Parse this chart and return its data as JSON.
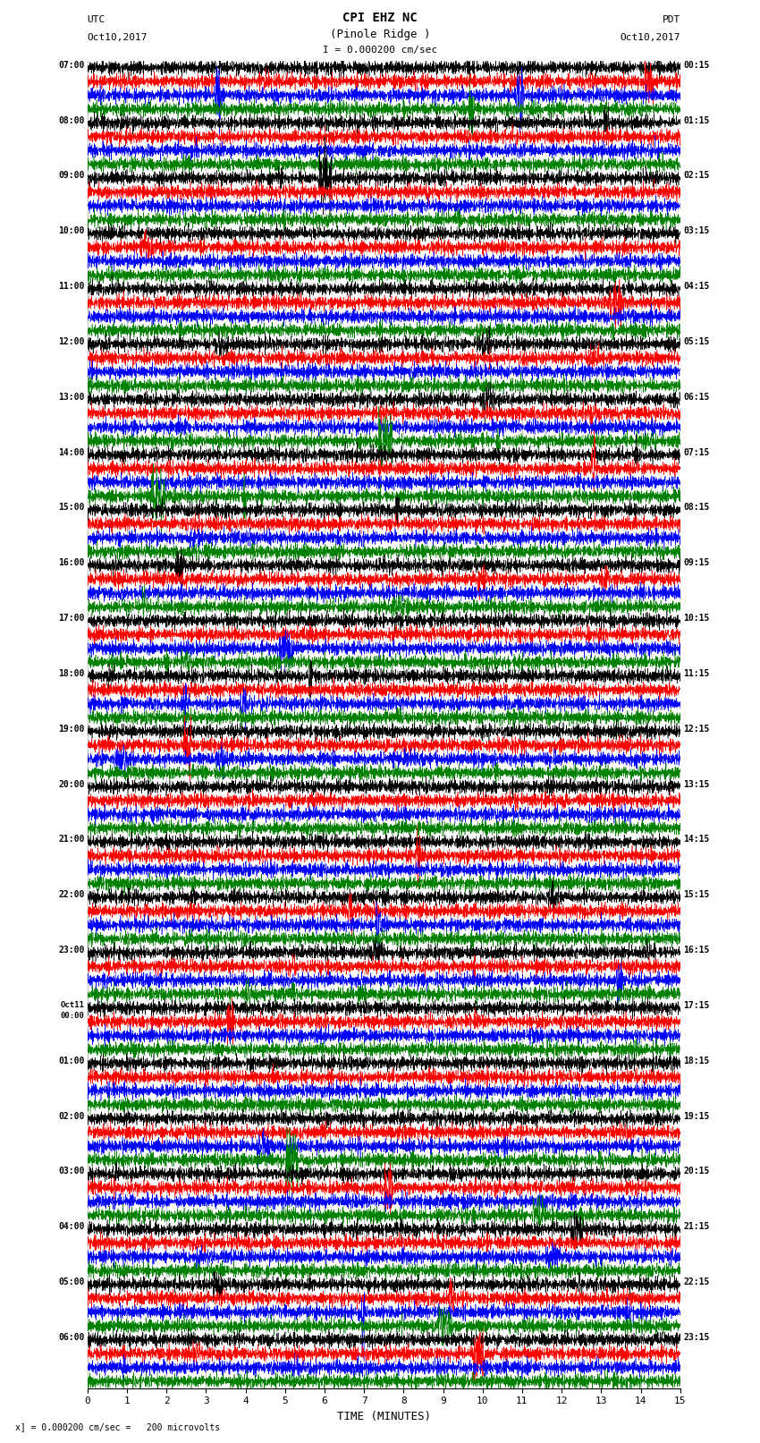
{
  "title_line1": "CPI EHZ NC",
  "title_line2": "(Pinole Ridge )",
  "scale_label": "I = 0.000200 cm/sec",
  "bottom_label": "x] = 0.000200 cm/sec =   200 microvolts",
  "left_header1": "UTC",
  "left_header2": "Oct10,2017",
  "right_header1": "PDT",
  "right_header2": "Oct10,2017",
  "xlabel": "TIME (MINUTES)",
  "bg_color": "#ffffff",
  "grid_color": "#888888",
  "trace_colors": [
    "#000000",
    "#ff0000",
    "#0000ff",
    "#008000"
  ],
  "xlim": [
    0,
    15
  ],
  "num_rows": 24,
  "left_times": [
    "07:00",
    "08:00",
    "09:00",
    "10:00",
    "11:00",
    "12:00",
    "13:00",
    "14:00",
    "15:00",
    "16:00",
    "17:00",
    "18:00",
    "19:00",
    "20:00",
    "21:00",
    "22:00",
    "23:00",
    "Oct11\n00:00",
    "01:00",
    "02:00",
    "03:00",
    "04:00",
    "05:00",
    "06:00"
  ],
  "right_times": [
    "00:15",
    "01:15",
    "02:15",
    "03:15",
    "04:15",
    "05:15",
    "06:15",
    "07:15",
    "08:15",
    "09:15",
    "10:15",
    "11:15",
    "12:15",
    "13:15",
    "14:15",
    "15:15",
    "16:15",
    "17:15",
    "18:15",
    "19:15",
    "20:15",
    "21:15",
    "22:15",
    "23:15"
  ],
  "fig_width": 8.5,
  "fig_height": 16.13,
  "dpi": 100
}
